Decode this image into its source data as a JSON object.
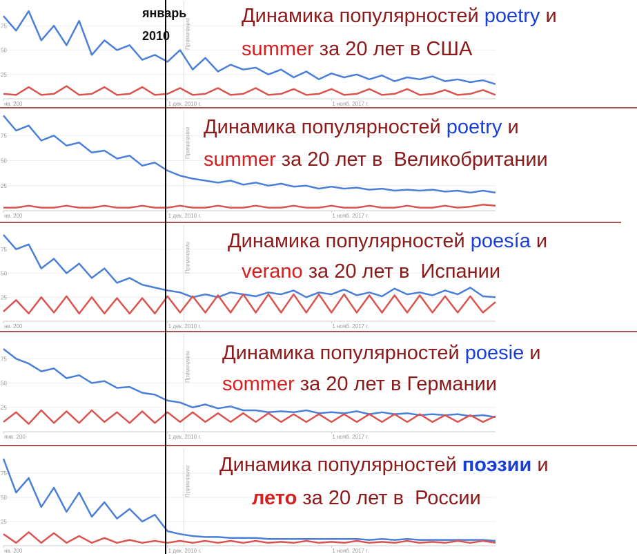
{
  "annotation": [
    "январь",
    "2010"
  ],
  "chart_data": [
    {
      "type": "line",
      "title_lines": [
        [
          {
            "text": "Динамика популярностей ",
            "color": "#8b1a1a"
          },
          {
            "text": "poetry",
            "color": "#1a3fd6"
          },
          {
            "text": " и",
            "color": "#8b1a1a"
          }
        ],
        [
          {
            "text": "summer",
            "color": "#d42020"
          },
          {
            "text": " за 20 лет в США",
            "color": "#8b1a1a"
          }
        ]
      ],
      "xlim": [
        0,
        39
      ],
      "ylim": [
        0,
        100
      ],
      "yticks": [
        25,
        50,
        75
      ],
      "grid": true,
      "xticks": [
        {
          "value": 0,
          "label": "нв. 200"
        },
        {
          "value": 13,
          "label": "1 дек. 2010 г."
        },
        {
          "value": 26,
          "label": "1 нояб. 2017 г."
        }
      ],
      "notes": [
        {
          "x": 14.3,
          "text": "Примечание"
        }
      ],
      "series": [
        {
          "color": "#4a7fd8",
          "values": [
            85,
            70,
            90,
            60,
            75,
            55,
            80,
            45,
            60,
            50,
            55,
            40,
            45,
            38,
            50,
            30,
            42,
            28,
            35,
            30,
            32,
            25,
            30,
            22,
            28,
            20,
            26,
            22,
            25,
            20,
            24,
            18,
            22,
            20,
            23,
            18,
            20,
            17,
            19,
            15
          ]
        },
        {
          "color": "#d9534f",
          "values": [
            5,
            4,
            12,
            4,
            5,
            13,
            4,
            5,
            12,
            4,
            5,
            12,
            4,
            5,
            11,
            4,
            5,
            11,
            4,
            5,
            11,
            4,
            5,
            10,
            4,
            5,
            10,
            4,
            5,
            10,
            4,
            5,
            10,
            4,
            5,
            9,
            4,
            5,
            9,
            4
          ]
        }
      ]
    },
    {
      "type": "line",
      "title_lines": [
        [
          {
            "text": "Динамика популярностей ",
            "color": "#8b1a1a"
          },
          {
            "text": "poetry",
            "color": "#1a3fd6"
          },
          {
            "text": " и",
            "color": "#8b1a1a"
          }
        ],
        [
          {
            "text": "summer",
            "color": "#d42020"
          },
          {
            "text": " за 20 лет в  Великобритании",
            "color": "#8b1a1a"
          }
        ]
      ],
      "xlim": [
        0,
        39
      ],
      "ylim": [
        0,
        100
      ],
      "yticks": [
        25,
        50,
        75
      ],
      "grid": true,
      "xticks": [
        {
          "value": 0,
          "label": "нв. 200"
        },
        {
          "value": 13,
          "label": "1 дек. 2010 г."
        },
        {
          "value": 26,
          "label": "1 нояб. 2017 г."
        }
      ],
      "notes": [
        {
          "x": 14.3,
          "text": "Примечание"
        }
      ],
      "series": [
        {
          "color": "#4a7fd8",
          "values": [
            95,
            80,
            85,
            70,
            75,
            65,
            68,
            58,
            60,
            52,
            55,
            45,
            48,
            40,
            35,
            32,
            30,
            28,
            30,
            26,
            28,
            25,
            27,
            24,
            25,
            22,
            24,
            22,
            23,
            21,
            22,
            20,
            21,
            20,
            21,
            19,
            20,
            18,
            20,
            18
          ]
        },
        {
          "color": "#d9534f",
          "values": [
            3,
            3,
            5,
            3,
            3,
            5,
            3,
            3,
            5,
            3,
            3,
            5,
            3,
            3,
            5,
            3,
            3,
            5,
            3,
            3,
            5,
            3,
            3,
            5,
            3,
            3,
            5,
            3,
            3,
            5,
            3,
            3,
            5,
            3,
            3,
            5,
            3,
            4,
            6,
            5
          ]
        }
      ]
    },
    {
      "type": "line",
      "title_lines": [
        [
          {
            "text": "Динамика популярностей ",
            "color": "#8b1a1a"
          },
          {
            "text": "poesía",
            "color": "#1a3fd6"
          },
          {
            "text": " и",
            "color": "#8b1a1a"
          }
        ],
        [
          {
            "text": "verano",
            "color": "#d42020"
          },
          {
            "text": " за 20 лет в  Испании",
            "color": "#8b1a1a"
          }
        ]
      ],
      "xlim": [
        0,
        39
      ],
      "ylim": [
        0,
        100
      ],
      "yticks": [
        25,
        50,
        75
      ],
      "grid": true,
      "xticks": [
        {
          "value": 0,
          "label": "нв. 200"
        },
        {
          "value": 13,
          "label": "1 дек. 2010 г."
        },
        {
          "value": 26,
          "label": "1 нояб. 2017 г."
        }
      ],
      "notes": [
        {
          "x": 14.3,
          "text": "Примечание"
        }
      ],
      "series": [
        {
          "color": "#4a7fd8",
          "values": [
            90,
            75,
            80,
            55,
            65,
            50,
            60,
            45,
            55,
            40,
            45,
            38,
            35,
            32,
            30,
            25,
            28,
            25,
            30,
            28,
            26,
            30,
            28,
            32,
            25,
            30,
            28,
            33,
            27,
            30,
            26,
            34,
            28,
            30,
            27,
            32,
            28,
            35,
            26,
            25
          ]
        },
        {
          "color": "#d9534f",
          "values": [
            10,
            22,
            8,
            25,
            9,
            26,
            8,
            25,
            8,
            24,
            8,
            24,
            8,
            26,
            9,
            26,
            9,
            27,
            9,
            28,
            9,
            28,
            9,
            28,
            9,
            28,
            9,
            28,
            9,
            27,
            9,
            27,
            9,
            27,
            9,
            26,
            9,
            26,
            9,
            20
          ]
        }
      ]
    },
    {
      "type": "line",
      "title_lines": [
        [
          {
            "text": "Динамика популярностей ",
            "color": "#8b1a1a"
          },
          {
            "text": "poesie",
            "color": "#1a3fd6"
          },
          {
            "text": " и",
            "color": "#8b1a1a"
          }
        ],
        [
          {
            "text": "sommer",
            "color": "#d42020"
          },
          {
            "text": " за 20 лет в Германии",
            "color": "#8b1a1a"
          }
        ]
      ],
      "xlim": [
        0,
        39
      ],
      "ylim": [
        0,
        100
      ],
      "yticks": [
        25,
        50,
        75
      ],
      "grid": true,
      "xticks": [
        {
          "value": 0,
          "label": "янв. 200"
        },
        {
          "value": 13,
          "label": "1 дек. 2010 г."
        },
        {
          "value": 26,
          "label": "1 нояб. 2017 г."
        }
      ],
      "notes": [
        {
          "x": 14.3,
          "text": "Примечание"
        }
      ],
      "series": [
        {
          "color": "#4a7fd8",
          "values": [
            85,
            75,
            70,
            62,
            65,
            55,
            58,
            50,
            52,
            45,
            46,
            40,
            38,
            32,
            30,
            25,
            28,
            24,
            26,
            22,
            22,
            20,
            21,
            20,
            22,
            19,
            20,
            19,
            21,
            18,
            20,
            18,
            19,
            17,
            18,
            17,
            18,
            16,
            17,
            15
          ]
        },
        {
          "color": "#d9534f",
          "values": [
            10,
            20,
            8,
            22,
            9,
            21,
            9,
            22,
            10,
            20,
            9,
            21,
            9,
            20,
            10,
            20,
            10,
            19,
            10,
            19,
            10,
            19,
            10,
            18,
            10,
            18,
            10,
            18,
            10,
            18,
            10,
            18,
            10,
            18,
            10,
            17,
            10,
            17,
            10,
            16
          ]
        }
      ]
    },
    {
      "type": "line",
      "title_lines": [
        [
          {
            "text": "Динамика популярностей ",
            "color": "#8b1a1a"
          },
          {
            "text": "поэзии",
            "color": "#1a3fd6",
            "bold": true
          },
          {
            "text": " и",
            "color": "#8b1a1a"
          }
        ],
        [
          {
            "text": "лето",
            "color": "#d42020",
            "bold": true
          },
          {
            "text": " за 20 лет в  России",
            "color": "#8b1a1a"
          }
        ]
      ],
      "xlim": [
        0,
        39
      ],
      "ylim": [
        0,
        100
      ],
      "yticks": [
        25,
        50,
        75
      ],
      "grid": true,
      "xticks": [
        {
          "value": 0,
          "label": "нв. 200"
        },
        {
          "value": 13,
          "label": "1 дек. 2010 г."
        },
        {
          "value": 26,
          "label": "1 нояб. 2017 г."
        }
      ],
      "notes": [
        {
          "x": 14.3,
          "text": "Примечание"
        }
      ],
      "series": [
        {
          "color": "#4a7fd8",
          "values": [
            90,
            55,
            70,
            40,
            60,
            35,
            55,
            30,
            45,
            28,
            38,
            25,
            32,
            15,
            12,
            10,
            9,
            9,
            8,
            8,
            8,
            7,
            7,
            7,
            7,
            7,
            7,
            7,
            7,
            6,
            7,
            6,
            7,
            6,
            6,
            6,
            6,
            6,
            6,
            5
          ]
        },
        {
          "color": "#d9534f",
          "values": [
            12,
            3,
            14,
            3,
            13,
            3,
            10,
            3,
            8,
            3,
            6,
            3,
            5,
            3,
            5,
            3,
            5,
            3,
            5,
            3,
            5,
            3,
            4,
            3,
            5,
            3,
            4,
            3,
            5,
            3,
            4,
            3,
            5,
            3,
            4,
            3,
            5,
            3,
            5,
            3
          ]
        }
      ]
    }
  ]
}
